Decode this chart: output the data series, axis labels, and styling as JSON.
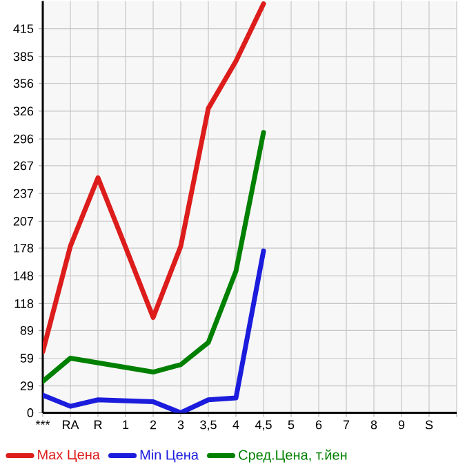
{
  "chart_data": {
    "type": "line",
    "categories": [
      "***",
      "RA",
      "R",
      "1",
      "2",
      "3",
      "3,5",
      "4",
      "4,5",
      "5",
      "6",
      "7",
      "8",
      "9",
      "S",
      null
    ],
    "series": [
      {
        "name": "Max Цена",
        "color": "#dd1c1c",
        "values": [
          66,
          180,
          254,
          179,
          103,
          180,
          329,
          380,
          442,
          null,
          null,
          null,
          null,
          null,
          null,
          null
        ]
      },
      {
        "name": "Min Цена",
        "color": "#1c1cdd",
        "values": [
          19,
          7,
          14,
          13,
          12,
          0,
          14,
          16,
          175,
          null,
          null,
          null,
          null,
          null,
          null,
          null
        ]
      },
      {
        "name": "Сред.Цена, т.йен",
        "color": "#008000",
        "values": [
          34,
          59,
          54,
          49,
          44,
          52,
          76,
          153,
          303,
          null,
          null,
          null,
          null,
          null,
          null,
          null
        ]
      }
    ],
    "ylim": [
      0,
      445
    ],
    "yticks": [
      0,
      29,
      59,
      89,
      118,
      148,
      178,
      207,
      237,
      267,
      296,
      326,
      356,
      385,
      415
    ],
    "grid": true,
    "legend": "bottom",
    "marker": "none",
    "line_style": "solid"
  }
}
